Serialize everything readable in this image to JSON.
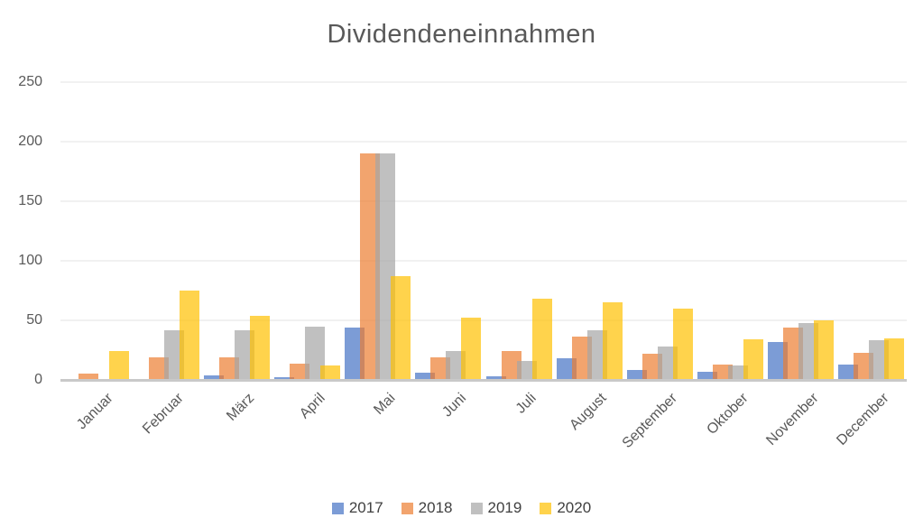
{
  "chart_data": {
    "type": "bar",
    "title": "Dividendeneinnahmen",
    "categories": [
      "Januar",
      "Februar",
      "März",
      "April",
      "Mai",
      "Juni",
      "Juli",
      "August",
      "September",
      "Oktober",
      "November",
      "December"
    ],
    "series": [
      {
        "name": "2017",
        "color": "rgba(68,114,196,0.7)",
        "values": [
          0,
          0,
          4,
          2,
          44,
          6,
          3,
          18,
          8,
          7,
          32,
          13
        ]
      },
      {
        "name": "2018",
        "color": "rgba(237,125,49,0.7)",
        "values": [
          5,
          19,
          19,
          14,
          190,
          19,
          24,
          36,
          22,
          13,
          44,
          23
        ]
      },
      {
        "name": "2019",
        "color": "rgba(165,165,165,0.7)",
        "values": [
          1,
          42,
          42,
          45,
          190,
          24,
          16,
          42,
          28,
          12,
          48,
          33
        ]
      },
      {
        "name": "2020",
        "color": "rgba(255,192,0,0.7)",
        "values": [
          24,
          75,
          54,
          12,
          87,
          52,
          68,
          65,
          60,
          34,
          50,
          35
        ]
      }
    ],
    "xlabel": "",
    "ylabel": "",
    "ylim": [
      0,
      250
    ],
    "y_ticks": [
      0,
      50,
      100,
      150,
      200,
      250
    ],
    "grid": true,
    "legend_position": "bottom",
    "styles": {
      "title_color": "#595959",
      "axis_text_color": "#595959",
      "legend_text_color": "#404040",
      "gridline_color": "#f1f1f1",
      "axis_line_color": "#c9c9c9",
      "background": "#ffffff"
    }
  }
}
